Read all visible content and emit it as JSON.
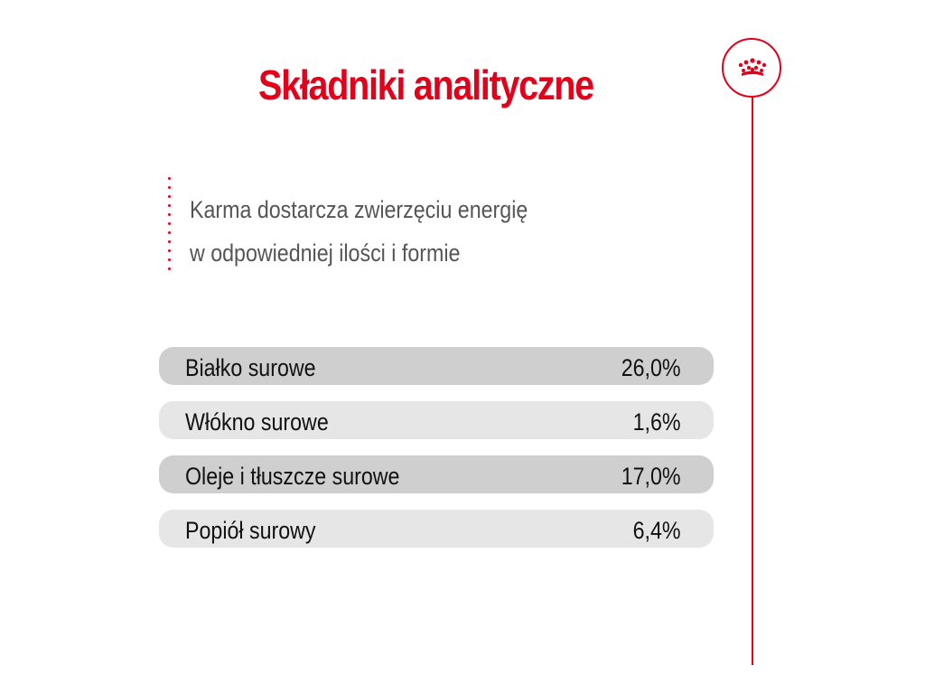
{
  "title": "Składniki analityczne",
  "subtitle": {
    "line1": "Karma dostarcza zwierzęciu energię",
    "line2": "w odpowiedniej ilości i formie"
  },
  "rows": [
    {
      "label": "Białko surowe",
      "value": "26,0%"
    },
    {
      "label": "Włókno surowe",
      "value": "1,6%"
    },
    {
      "label": "Oleje i tłuszcze surowe",
      "value": "17,0%"
    },
    {
      "label": "Popiół surowy",
      "value": "6,4%"
    }
  ],
  "logo": {
    "icon": "crown-icon"
  },
  "colors": {
    "accent": "#e2001a",
    "row_dark": "#cfcfcf",
    "row_light": "#e6e6e6",
    "subtitle_text": "#555555",
    "body_text": "#111111"
  }
}
